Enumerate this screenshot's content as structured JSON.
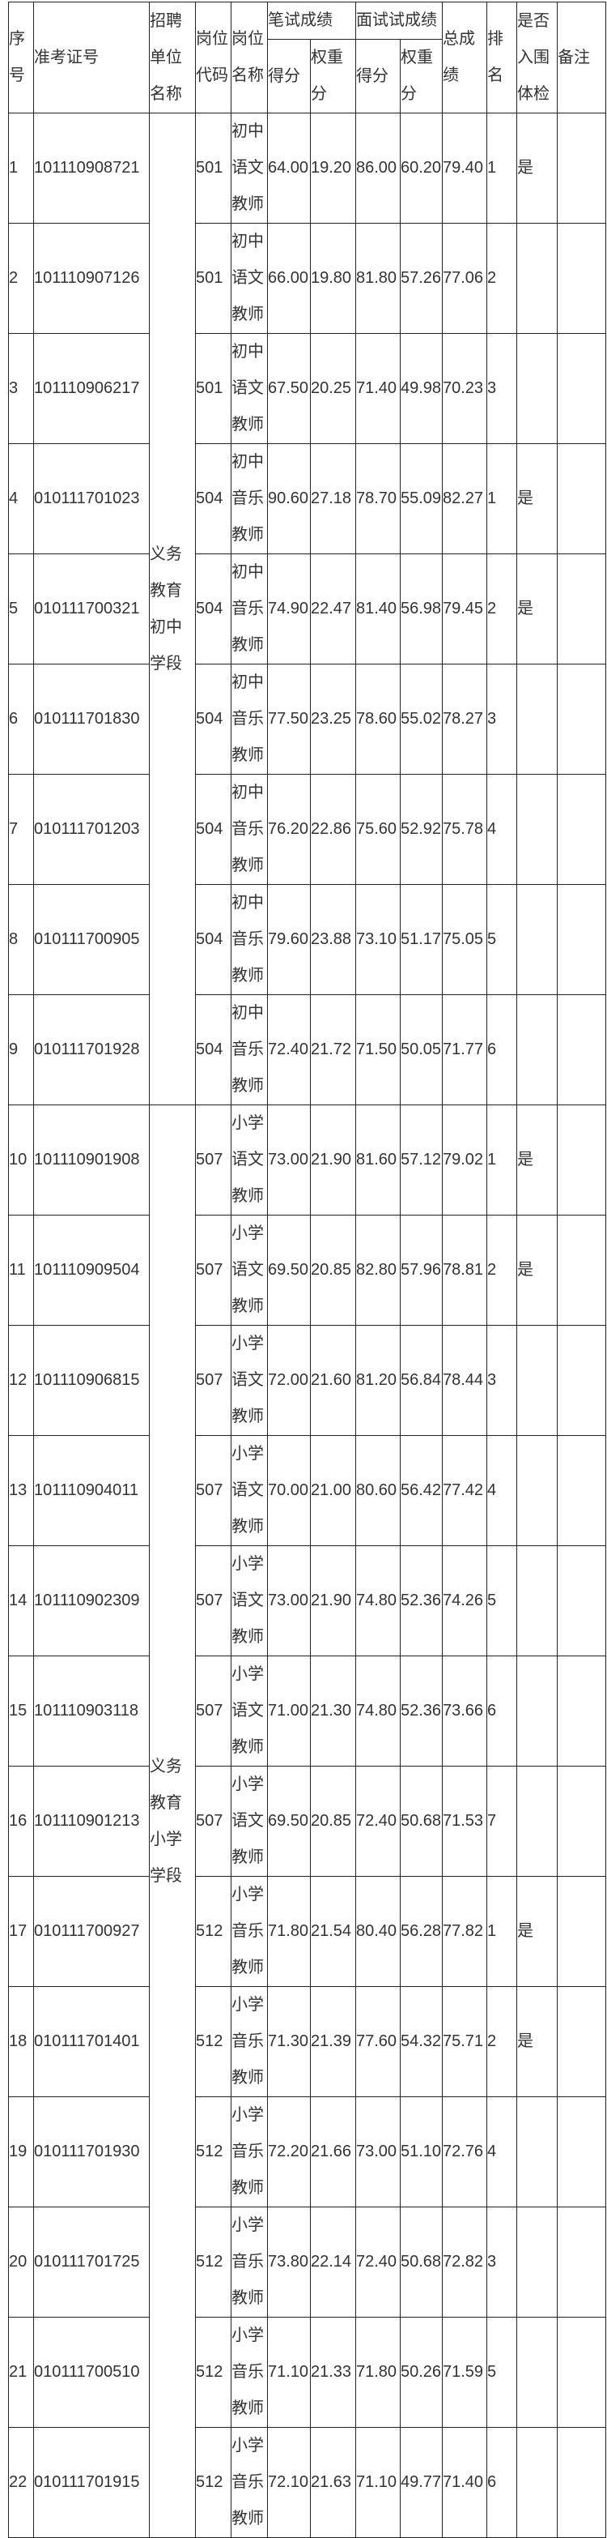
{
  "headers": {
    "seq": "序号",
    "exam_id": "准考证号",
    "unit": "招聘单位名称",
    "post_code": "岗位代码",
    "post_name": "岗位名称",
    "written": "笔试成绩",
    "interview": "面试试成绩",
    "score": "得分",
    "weighted": "权重分",
    "total": "总成绩",
    "rank": "排名",
    "physical": "是否入围体检",
    "remark": "备注"
  },
  "units": [
    {
      "name": "义务教育初中学段",
      "rows": 9
    },
    {
      "name": "义务教育小学学段",
      "rows": 13
    }
  ],
  "rows": [
    {
      "seq": "1",
      "id": "101110908721",
      "code": "501",
      "post": "初中语文教师",
      "ws": "64.00",
      "ww": "19.20",
      "is": "86.00",
      "iw": "60.20",
      "total": "79.40",
      "rank": "1",
      "phys": "是",
      "remark": ""
    },
    {
      "seq": "2",
      "id": "101110907126",
      "code": "501",
      "post": "初中语文教师",
      "ws": "66.00",
      "ww": "19.80",
      "is": "81.80",
      "iw": "57.26",
      "total": "77.06",
      "rank": "2",
      "phys": "",
      "remark": ""
    },
    {
      "seq": "3",
      "id": "101110906217",
      "code": "501",
      "post": "初中语文教师",
      "ws": "67.50",
      "ww": "20.25",
      "is": "71.40",
      "iw": "49.98",
      "total": "70.23",
      "rank": "3",
      "phys": "",
      "remark": ""
    },
    {
      "seq": "4",
      "id": "010111701023",
      "code": "504",
      "post": "初中音乐教师",
      "ws": "90.60",
      "ww": "27.18",
      "is": "78.70",
      "iw": "55.09",
      "total": "82.27",
      "rank": "1",
      "phys": "是",
      "remark": ""
    },
    {
      "seq": "5",
      "id": "010111700321",
      "code": "504",
      "post": "初中音乐教师",
      "ws": "74.90",
      "ww": "22.47",
      "is": "81.40",
      "iw": "56.98",
      "total": "79.45",
      "rank": "2",
      "phys": "是",
      "remark": ""
    },
    {
      "seq": "6",
      "id": "010111701830",
      "code": "504",
      "post": "初中音乐教师",
      "ws": "77.50",
      "ww": "23.25",
      "is": "78.60",
      "iw": "55.02",
      "total": "78.27",
      "rank": "3",
      "phys": "",
      "remark": ""
    },
    {
      "seq": "7",
      "id": "010111701203",
      "code": "504",
      "post": "初中音乐教师",
      "ws": "76.20",
      "ww": "22.86",
      "is": "75.60",
      "iw": "52.92",
      "total": "75.78",
      "rank": "4",
      "phys": "",
      "remark": ""
    },
    {
      "seq": "8",
      "id": "010111700905",
      "code": "504",
      "post": "初中音乐教师",
      "ws": "79.60",
      "ww": "23.88",
      "is": "73.10",
      "iw": "51.17",
      "total": "75.05",
      "rank": "5",
      "phys": "",
      "remark": ""
    },
    {
      "seq": "9",
      "id": "010111701928",
      "code": "504",
      "post": "初中音乐教师",
      "ws": "72.40",
      "ww": "21.72",
      "is": "71.50",
      "iw": "50.05",
      "total": "71.77",
      "rank": "6",
      "phys": "",
      "remark": ""
    },
    {
      "seq": "10",
      "id": "101110901908",
      "code": "507",
      "post": "小学语文教师",
      "ws": "73.00",
      "ww": "21.90",
      "is": "81.60",
      "iw": "57.12",
      "total": "79.02",
      "rank": "1",
      "phys": "是",
      "remark": ""
    },
    {
      "seq": "11",
      "id": "101110909504",
      "code": "507",
      "post": "小学语文教师",
      "ws": "69.50",
      "ww": "20.85",
      "is": "82.80",
      "iw": "57.96",
      "total": "78.81",
      "rank": "2",
      "phys": "是",
      "remark": ""
    },
    {
      "seq": "12",
      "id": "101110906815",
      "code": "507",
      "post": "小学语文教师",
      "ws": "72.00",
      "ww": "21.60",
      "is": "81.20",
      "iw": "56.84",
      "total": "78.44",
      "rank": "3",
      "phys": "",
      "remark": ""
    },
    {
      "seq": "13",
      "id": "101110904011",
      "code": "507",
      "post": "小学语文教师",
      "ws": "70.00",
      "ww": "21.00",
      "is": "80.60",
      "iw": "56.42",
      "total": "77.42",
      "rank": "4",
      "phys": "",
      "remark": ""
    },
    {
      "seq": "14",
      "id": "101110902309",
      "code": "507",
      "post": "小学语文教师",
      "ws": "73.00",
      "ww": "21.90",
      "is": "74.80",
      "iw": "52.36",
      "total": "74.26",
      "rank": "5",
      "phys": "",
      "remark": ""
    },
    {
      "seq": "15",
      "id": "101110903118",
      "code": "507",
      "post": "小学语文教师",
      "ws": "71.00",
      "ww": "21.30",
      "is": "74.80",
      "iw": "52.36",
      "total": "73.66",
      "rank": "6",
      "phys": "",
      "remark": ""
    },
    {
      "seq": "16",
      "id": "101110901213",
      "code": "507",
      "post": "小学语文教师",
      "ws": "69.50",
      "ww": "20.85",
      "is": "72.40",
      "iw": "50.68",
      "total": "71.53",
      "rank": "7",
      "phys": "",
      "remark": ""
    },
    {
      "seq": "17",
      "id": "010111700927",
      "code": "512",
      "post": "小学音乐教师",
      "ws": "71.80",
      "ww": "21.54",
      "is": "80.40",
      "iw": "56.28",
      "total": "77.82",
      "rank": "1",
      "phys": "是",
      "remark": ""
    },
    {
      "seq": "18",
      "id": "010111701401",
      "code": "512",
      "post": "小学音乐教师",
      "ws": "71.30",
      "ww": "21.39",
      "is": "77.60",
      "iw": "54.32",
      "total": "75.71",
      "rank": "2",
      "phys": "是",
      "remark": ""
    },
    {
      "seq": "19",
      "id": "010111701930",
      "code": "512",
      "post": "小学音乐教师",
      "ws": "72.20",
      "ww": "21.66",
      "is": "73.00",
      "iw": "51.10",
      "total": "72.76",
      "rank": "4",
      "phys": "",
      "remark": ""
    },
    {
      "seq": "20",
      "id": "010111701725",
      "code": "512",
      "post": "小学音乐教师",
      "ws": "73.80",
      "ww": "22.14",
      "is": "72.40",
      "iw": "50.68",
      "total": "72.82",
      "rank": "3",
      "phys": "",
      "remark": ""
    },
    {
      "seq": "21",
      "id": "010111700510",
      "code": "512",
      "post": "小学音乐教师",
      "ws": "71.10",
      "ww": "21.33",
      "is": "71.80",
      "iw": "50.26",
      "total": "71.59",
      "rank": "5",
      "phys": "",
      "remark": ""
    },
    {
      "seq": "22",
      "id": "010111701915",
      "code": "512",
      "post": "小学音乐教师",
      "ws": "72.10",
      "ww": "21.63",
      "is": "71.10",
      "iw": "49.77",
      "total": "71.40",
      "rank": "6",
      "phys": "",
      "remark": ""
    }
  ]
}
